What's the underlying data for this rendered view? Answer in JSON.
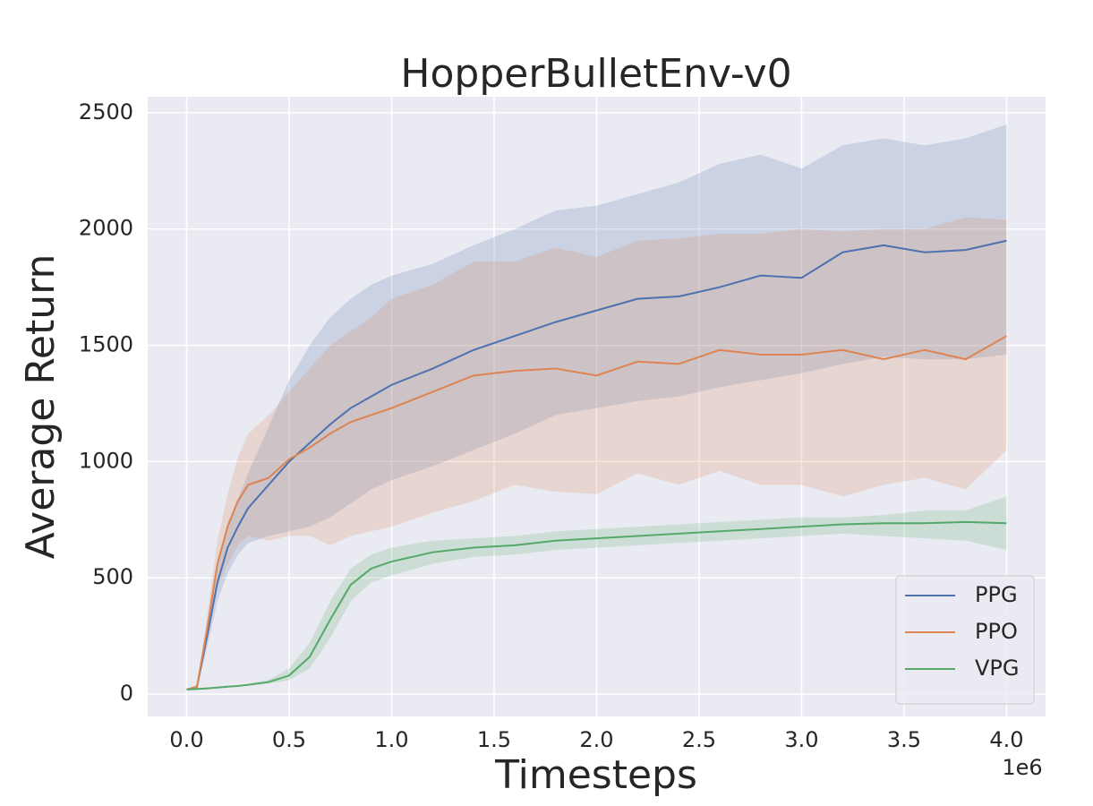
{
  "chart_data": {
    "type": "line",
    "title": "HopperBulletEnv-v0",
    "xlabel": "Timesteps",
    "ylabel": "Average Return",
    "x_multiplier": "1e6",
    "x": [
      0,
      0.05,
      0.1,
      0.15,
      0.2,
      0.25,
      0.3,
      0.4,
      0.5,
      0.6,
      0.7,
      0.8,
      0.9,
      1.0,
      1.2,
      1.4,
      1.6,
      1.8,
      2.0,
      2.2,
      2.4,
      2.6,
      2.8,
      3.0,
      3.2,
      3.4,
      3.6,
      3.8,
      4.0
    ],
    "series": [
      {
        "name": "PPG",
        "color": "#4c72b0",
        "values": [
          20,
          30,
          250,
          480,
          630,
          720,
          800,
          900,
          1000,
          1080,
          1160,
          1230,
          1280,
          1330,
          1400,
          1480,
          1540,
          1600,
          1650,
          1700,
          1710,
          1750,
          1800,
          1790,
          1900,
          1930,
          1900,
          1910,
          1950
        ],
        "lower": [
          20,
          25,
          200,
          400,
          520,
          600,
          650,
          680,
          700,
          720,
          760,
          820,
          880,
          920,
          980,
          1050,
          1120,
          1200,
          1230,
          1260,
          1280,
          1320,
          1350,
          1380,
          1420,
          1450,
          1440,
          1440,
          1460
        ],
        "upper": [
          20,
          40,
          300,
          560,
          740,
          840,
          950,
          1150,
          1350,
          1500,
          1620,
          1700,
          1760,
          1800,
          1850,
          1930,
          2000,
          2080,
          2100,
          2150,
          2200,
          2280,
          2320,
          2260,
          2360,
          2390,
          2360,
          2390,
          2450
        ]
      },
      {
        "name": "PPO",
        "color": "#dd8452",
        "values": [
          20,
          30,
          280,
          560,
          720,
          830,
          900,
          930,
          1010,
          1060,
          1120,
          1170,
          1200,
          1230,
          1300,
          1370,
          1390,
          1400,
          1370,
          1430,
          1420,
          1480,
          1460,
          1460,
          1480,
          1440,
          1480,
          1440,
          1540
        ],
        "lower": [
          20,
          25,
          220,
          460,
          560,
          640,
          680,
          660,
          680,
          680,
          640,
          680,
          700,
          720,
          780,
          830,
          900,
          870,
          860,
          950,
          900,
          960,
          900,
          900,
          850,
          900,
          930,
          880,
          1050
        ],
        "upper": [
          20,
          40,
          340,
          660,
          860,
          1020,
          1120,
          1200,
          1300,
          1400,
          1500,
          1560,
          1620,
          1700,
          1760,
          1860,
          1860,
          1920,
          1880,
          1950,
          1960,
          1980,
          1980,
          2000,
          1990,
          2000,
          2000,
          2050,
          2040
        ]
      },
      {
        "name": "VPG",
        "color": "#55a868",
        "values": [
          20,
          22,
          25,
          28,
          32,
          35,
          40,
          52,
          80,
          160,
          320,
          470,
          540,
          570,
          610,
          630,
          640,
          660,
          670,
          680,
          690,
          700,
          710,
          720,
          730,
          735,
          735,
          740,
          735
        ],
        "lower": [
          20,
          21,
          23,
          26,
          29,
          32,
          36,
          45,
          60,
          110,
          240,
          400,
          480,
          510,
          560,
          590,
          600,
          620,
          630,
          640,
          650,
          660,
          670,
          680,
          690,
          680,
          670,
          660,
          620
        ],
        "upper": [
          20,
          23,
          27,
          31,
          36,
          39,
          45,
          62,
          110,
          220,
          400,
          540,
          600,
          630,
          660,
          670,
          680,
          700,
          710,
          720,
          730,
          740,
          750,
          760,
          760,
          770,
          790,
          790,
          850
        ]
      }
    ],
    "xlim": [
      -0.19,
      4.19
    ],
    "xticks": [
      {
        "value": 0,
        "label": "0.0"
      },
      0.5,
      {
        "value": 1,
        "label": "1.0"
      },
      1.5,
      {
        "value": 2,
        "label": "2.0"
      },
      2.5,
      {
        "value": 3,
        "label": "3.0"
      },
      3.5,
      {
        "value": 4,
        "label": "4.0"
      }
    ],
    "ylim": [
      -96,
      2569
    ],
    "yticks": [
      0,
      500,
      1000,
      1500,
      2000,
      2500
    ],
    "grid": true,
    "legend_position": "lower right",
    "background": "#eaeaf2"
  }
}
